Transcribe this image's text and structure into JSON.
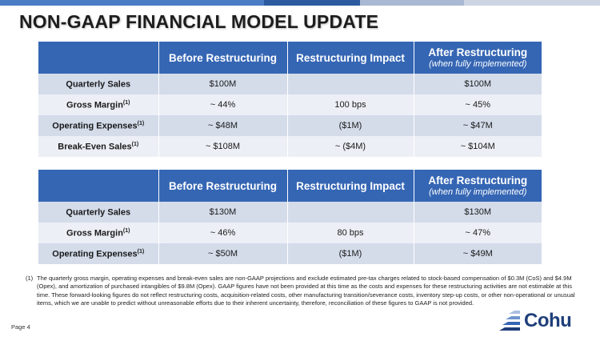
{
  "title": "NON-GAAP FINANCIAL MODEL UPDATE",
  "colors": {
    "header_blue": "#3566b4",
    "row_dark": "#d4dcea",
    "row_light": "#eceff5",
    "brand": "#1f3f7a"
  },
  "columns": {
    "before": "Before Restructuring",
    "impact": "Restructuring Impact",
    "after": "After Restructuring",
    "after_sub": "(when fully implemented)"
  },
  "table1": {
    "rows": [
      {
        "label": "Quarterly Sales",
        "fn": "",
        "before": "$100M",
        "impact": "",
        "after": "$100M"
      },
      {
        "label": "Gross Margin",
        "fn": "(1)",
        "before": "~ 44%",
        "impact": "100 bps",
        "after": "~ 45%"
      },
      {
        "label": "Operating Expenses",
        "fn": "(1)",
        "before": "~ $48M",
        "impact": "($1M)",
        "after": "~ $47M"
      },
      {
        "label": "Break-Even Sales",
        "fn": "(1)",
        "before": "~ $108M",
        "impact": "~ ($4M)",
        "after": "~ $104M"
      }
    ]
  },
  "table2": {
    "rows": [
      {
        "label": "Quarterly Sales",
        "fn": "",
        "before": "$130M",
        "impact": "",
        "after": "$130M"
      },
      {
        "label": "Gross Margin",
        "fn": "(1)",
        "before": "~ 46%",
        "impact": "80 bps",
        "after": "~ 47%"
      },
      {
        "label": "Operating Expenses",
        "fn": "(1)",
        "before": "~ $50M",
        "impact": "($1M)",
        "after": "~ $49M"
      }
    ]
  },
  "footnote": {
    "mark": "(1)",
    "text": "The quarterly gross margin, operating expenses and break-even sales are non-GAAP projections and exclude estimated pre-tax charges related to stock-based compensation of $0.3M (CoS) and $4.9M (Opex), and amortization of purchased intangibles of $9.8M (Opex). GAAP figures have not been provided at this time as the costs and expenses for these restructuring activities are not estimable at this time. These forward-looking figures do not reflect restructuring costs, acquisition-related costs, other manufacturing transition/severance costs, inventory step-up costs, or other non-operational or unusual items, which we are unable to predict without unreasonable efforts due to their inherent uncertainty, therefore, reconciliation of these figures to GAAP is not provided."
  },
  "page_label": "Page 4",
  "logo": {
    "text": "Cohu",
    "icon": "cohu-logo-icon"
  }
}
